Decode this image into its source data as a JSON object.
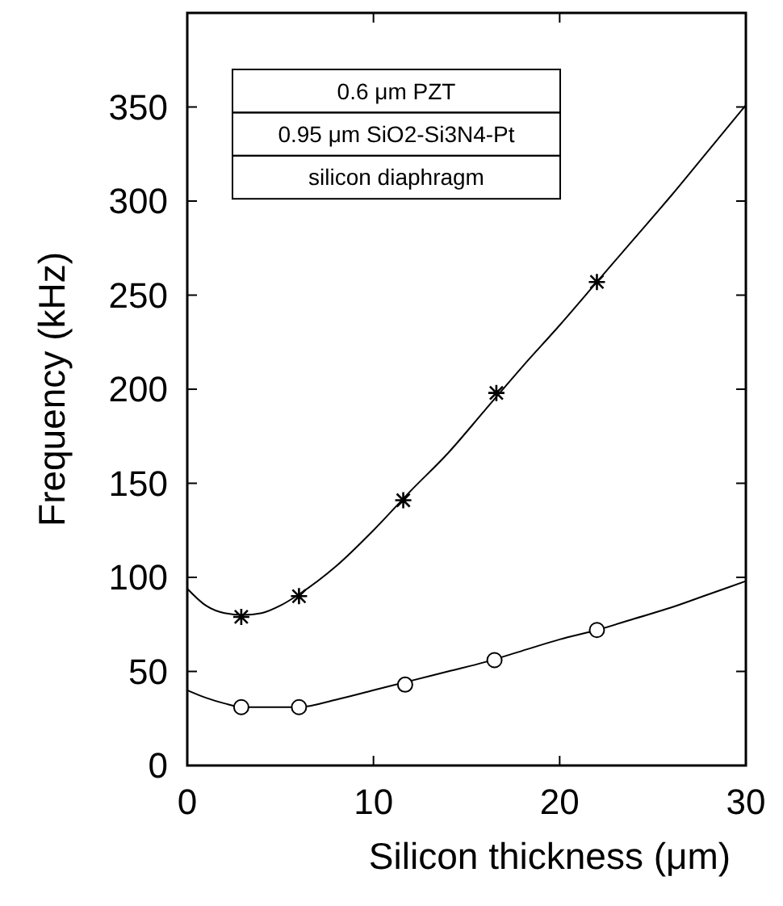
{
  "chart_data": {
    "type": "line",
    "xlabel": "Silicon thickness (μm)",
    "ylabel": "Frequency  (kHz)",
    "xlim": [
      0,
      30
    ],
    "ylim": [
      0,
      400
    ],
    "xticks": [
      0,
      10,
      20,
      30
    ],
    "yticks": [
      0,
      50,
      100,
      150,
      200,
      250,
      300,
      350
    ],
    "grid": false,
    "line_style": "solid",
    "annotations": [
      "0.6 μm PZT",
      "0.95 μm SiO2-Si3N4-Pt",
      "silicon diaphragm"
    ],
    "series": [
      {
        "color": "#000000",
        "marker": "none",
        "x": [
          0,
          1,
          2,
          3,
          4,
          5,
          6,
          8,
          10,
          12,
          14,
          16,
          18,
          20,
          22,
          24,
          26,
          28,
          30
        ],
        "values": [
          94,
          85,
          81,
          80,
          81,
          85,
          91,
          106,
          125,
          146,
          166,
          189,
          212,
          234,
          257,
          280,
          303,
          327,
          351
        ]
      },
      {
        "color": "#000000",
        "marker": "none",
        "x": [
          0,
          1,
          2,
          3,
          4,
          5,
          6,
          8,
          10,
          12,
          14,
          16,
          18,
          20,
          22,
          24,
          26,
          28,
          30
        ],
        "values": [
          40,
          36,
          33,
          31,
          31,
          31,
          31,
          35,
          40,
          45,
          50,
          55,
          61,
          67,
          72,
          78,
          84,
          91,
          98
        ]
      },
      {
        "type": "scatter",
        "color": "#000000",
        "marker": "cross",
        "x": [
          2.9,
          6,
          11.6,
          16.6,
          22
        ],
        "values": [
          79,
          90,
          141,
          198,
          257
        ]
      },
      {
        "type": "scatter",
        "color": "#000000",
        "marker": "circle",
        "x": [
          2.9,
          6,
          11.7,
          16.5,
          22
        ],
        "values": [
          31,
          31,
          43,
          56,
          72
        ]
      }
    ]
  }
}
